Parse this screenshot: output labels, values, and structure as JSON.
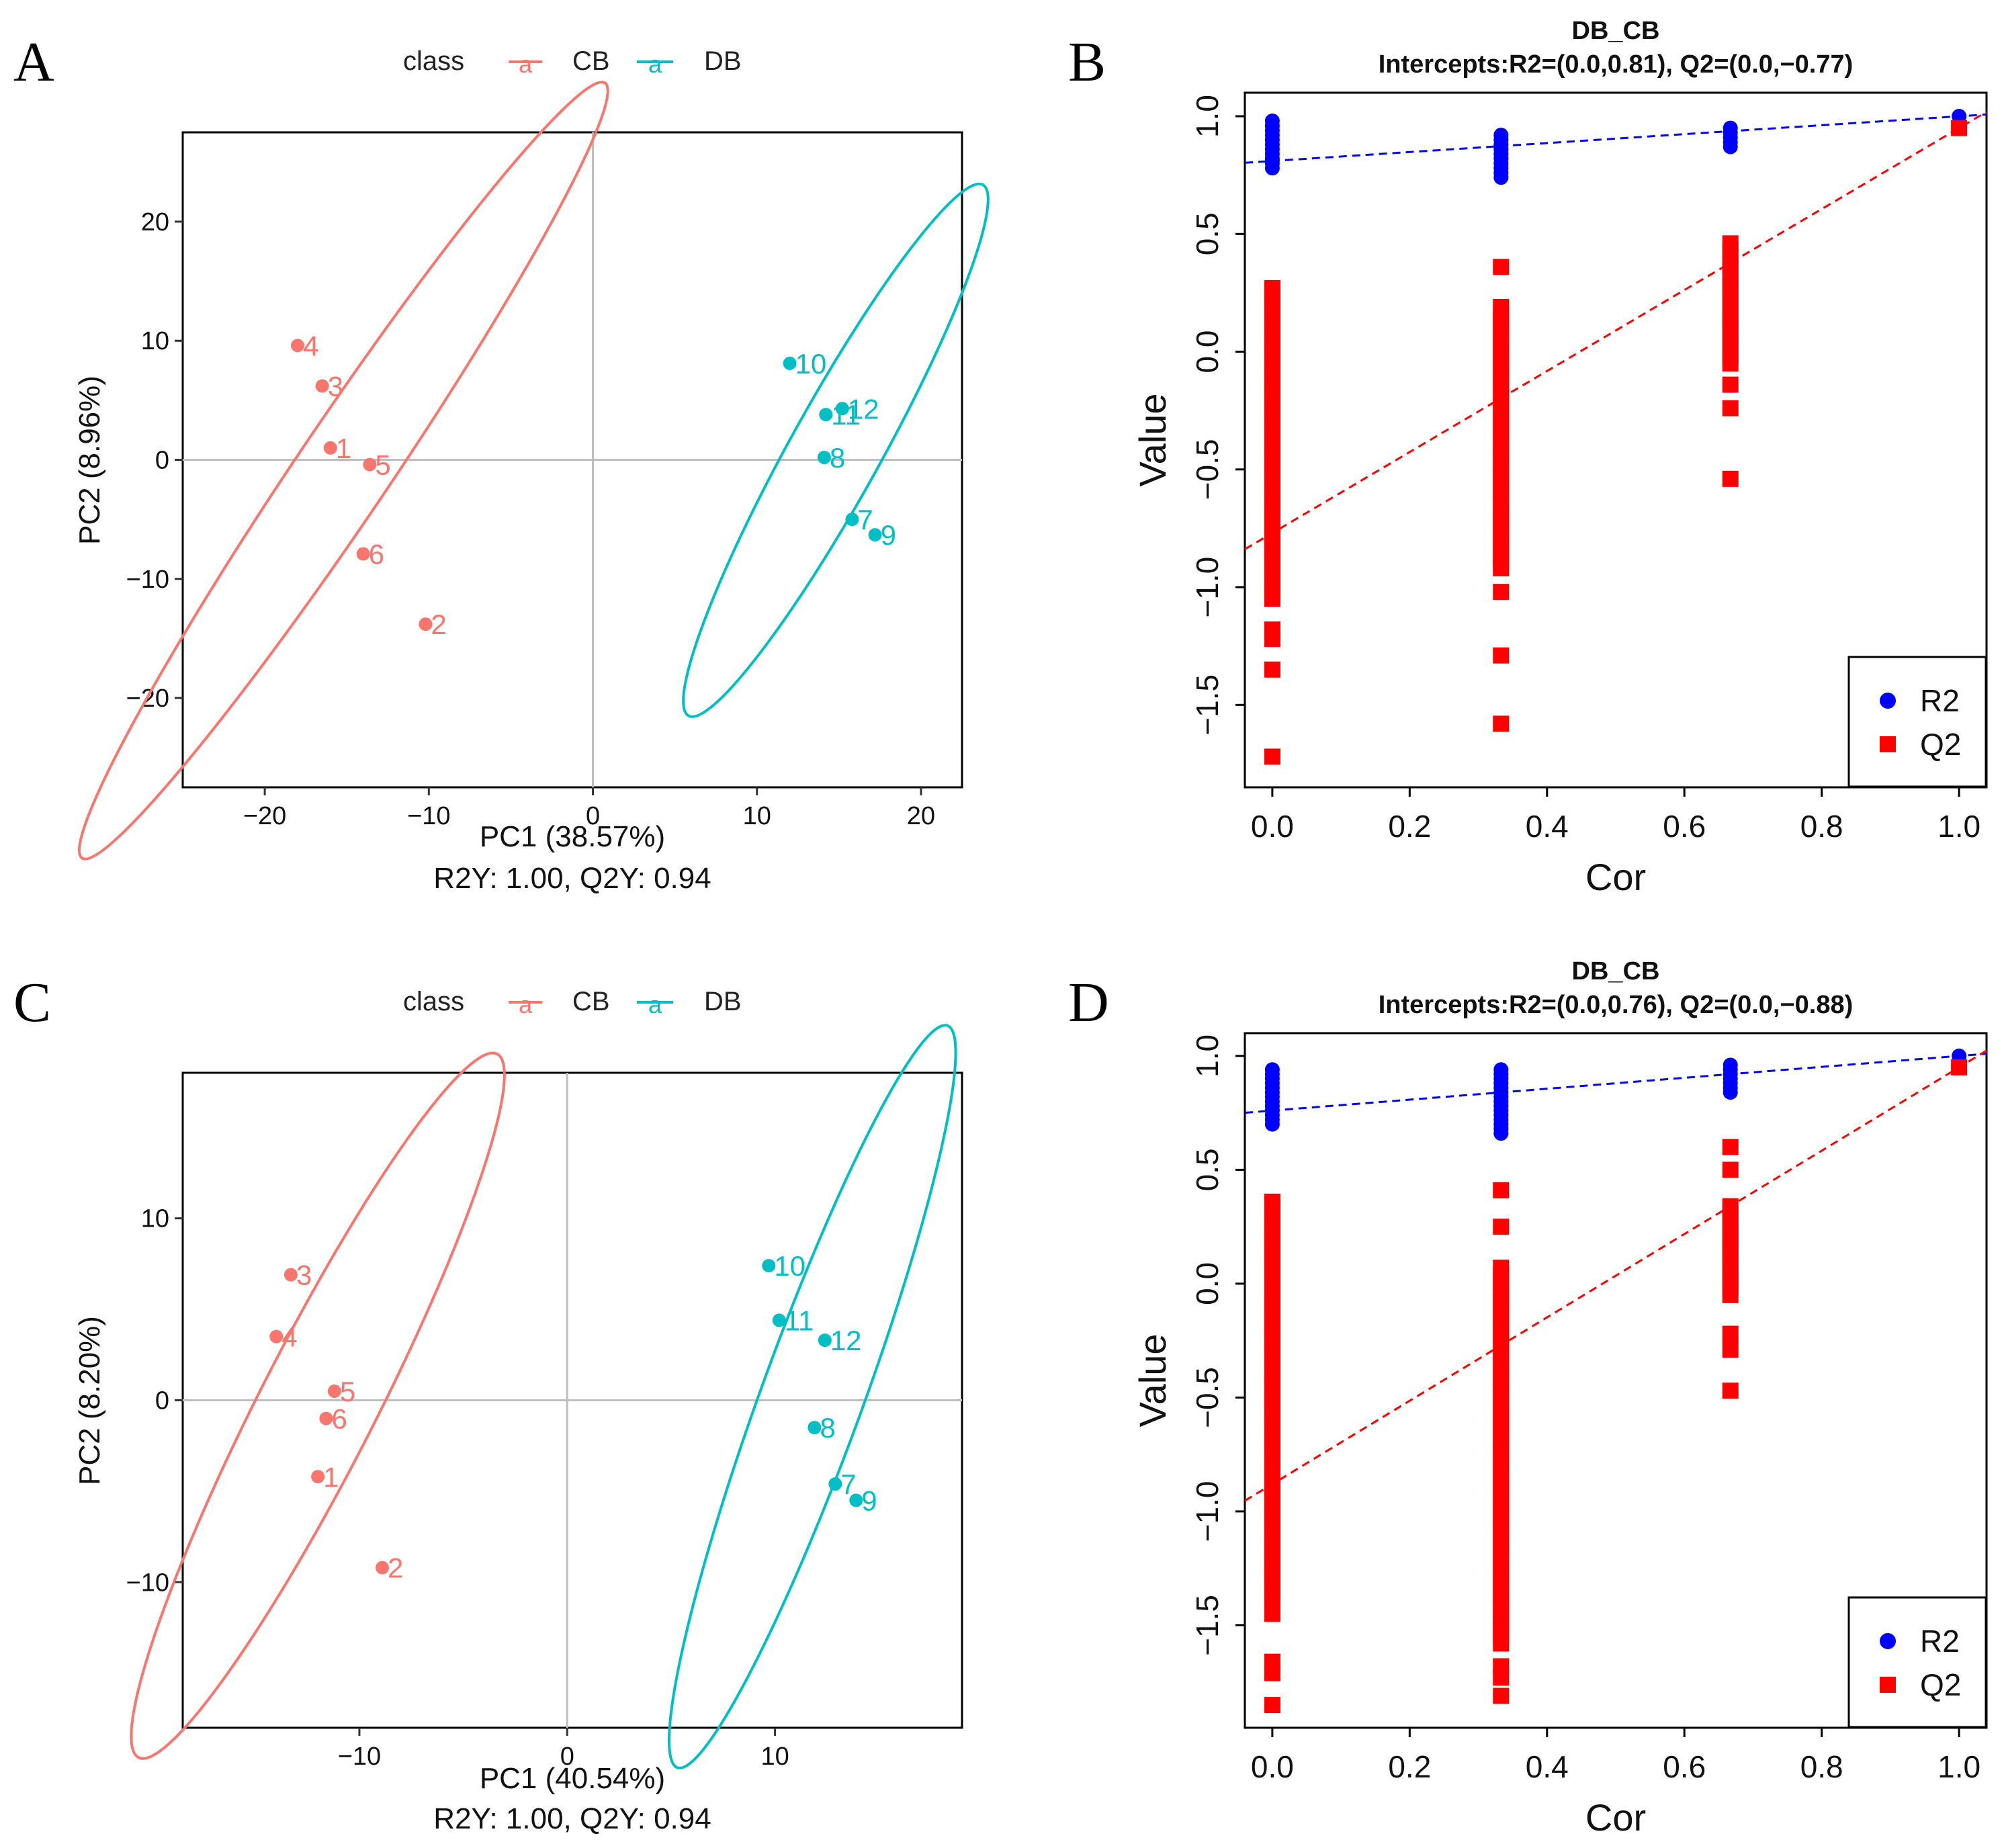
{
  "colors": {
    "CB": "#F8766D",
    "DB": "#00BFC4",
    "R2": "#0000FF",
    "Q2": "#FF0000",
    "refline": "#BEBEBE"
  },
  "chart_data": [
    {
      "panel": "A",
      "type": "scatter",
      "legend_title": "class",
      "legend": [
        "CB",
        "DB"
      ],
      "legend_position": "top",
      "legend_glyph": "a",
      "xlabel": "PC1 (38.57%)",
      "subtitle": "R2Y: 1.00, Q2Y: 0.94",
      "ylabel": "PC2 (8.96%)",
      "xlim": [
        -25,
        22.5
      ],
      "ylim": [
        -27.5,
        27.5
      ],
      "xticks": [
        -20,
        -10,
        0,
        10,
        20
      ],
      "yticks": [
        -20,
        -10,
        0,
        10,
        20
      ],
      "xtick_labels": [
        "−20",
        "−10",
        "0",
        "10",
        "20"
      ],
      "ytick_labels": [
        "−20",
        "−10",
        "0",
        "10",
        "20"
      ],
      "series": [
        {
          "name": "CB",
          "points": [
            {
              "label": "1",
              "x": -16.0,
              "y": 1.0
            },
            {
              "label": "2",
              "x": -10.2,
              "y": -13.8
            },
            {
              "label": "3",
              "x": -16.5,
              "y": 6.2
            },
            {
              "label": "4",
              "x": -18.0,
              "y": 9.6
            },
            {
              "label": "5",
              "x": -13.6,
              "y": -0.4
            },
            {
              "label": "6",
              "x": -14.0,
              "y": -7.9
            }
          ],
          "ellipse": {
            "cx": -15.2,
            "cy": -0.9,
            "rx": 28.5,
            "ry": 3.9,
            "angle_deg": -56
          }
        },
        {
          "name": "DB",
          "points": [
            {
              "label": "7",
              "x": 15.8,
              "y": -5.0
            },
            {
              "label": "8",
              "x": 14.1,
              "y": 0.2
            },
            {
              "label": "9",
              "x": 17.2,
              "y": -6.3
            },
            {
              "label": "10",
              "x": 12.0,
              "y": 8.1
            },
            {
              "label": "11",
              "x": 14.2,
              "y": 3.8
            },
            {
              "label": "12",
              "x": 15.2,
              "y": 4.3
            }
          ],
          "ellipse": {
            "cx": 14.8,
            "cy": 0.8,
            "rx": 18.5,
            "ry": 3.8,
            "angle_deg": -61
          }
        }
      ]
    },
    {
      "panel": "B",
      "type": "scatter",
      "title": "DB_CB",
      "subtitle": "Intercepts:R2=(0.0,0.81), Q2=(0.0,−0.77)",
      "xlabel": "Cor",
      "ylabel": "Value",
      "xlim": [
        -0.04,
        1.04
      ],
      "ylim": [
        -1.85,
        1.1
      ],
      "xticks": [
        0.0,
        0.2,
        0.4,
        0.6,
        0.8,
        1.0
      ],
      "yticks": [
        -1.5,
        -1.0,
        -0.5,
        0.0,
        0.5,
        1.0
      ],
      "xtick_labels": [
        "0.0",
        "0.2",
        "0.4",
        "0.6",
        "0.8",
        "1.0"
      ],
      "ytick_labels": [
        "−1.5",
        "−1.0",
        "−0.5",
        "0.0",
        "0.5",
        "1.0"
      ],
      "legend": [
        "R2",
        "Q2"
      ],
      "legend_position": "bottom-right",
      "R2_intercept": 0.81,
      "Q2_intercept": -0.77,
      "R2_original": 1.0,
      "Q2_original": 0.95,
      "series": [
        {
          "name": "R2",
          "groups": [
            {
              "x": 0.0,
              "min": 0.78,
              "max": 0.99
            },
            {
              "x": 0.333,
              "min": 0.74,
              "max": 0.92
            },
            {
              "x": 0.667,
              "min": 0.87,
              "max": 0.95
            }
          ]
        },
        {
          "name": "Q2",
          "groups": [
            {
              "x": 0.0,
              "min": -1.05,
              "max": 0.27,
              "extra": [
                -1.18,
                -1.22,
                -1.35,
                -1.72
              ]
            },
            {
              "x": 0.333,
              "min": -0.92,
              "max": 0.21,
              "extra": [
                0.36,
                -1.02,
                -1.29,
                -1.58
              ]
            },
            {
              "x": 0.667,
              "min": -0.05,
              "max": 0.47,
              "extra": [
                -0.14,
                -0.24,
                -0.54
              ]
            }
          ]
        }
      ]
    },
    {
      "panel": "C",
      "type": "scatter",
      "legend_title": "class",
      "legend": [
        "CB",
        "DB"
      ],
      "legend_position": "top",
      "legend_glyph": "a",
      "xlabel": "PC1 (40.54%)",
      "subtitle": "R2Y: 1.00, Q2Y: 0.94",
      "ylabel": "PC2 (8.20%)",
      "xlim": [
        -18.5,
        19.0
      ],
      "ylim": [
        -18.0,
        18.0
      ],
      "xticks": [
        -10,
        0,
        10
      ],
      "yticks": [
        -10,
        0,
        10
      ],
      "xtick_labels": [
        "−10",
        "0",
        "10"
      ],
      "ytick_labels": [
        "−10",
        "0",
        "10"
      ],
      "series": [
        {
          "name": "CB",
          "points": [
            {
              "label": "1",
              "x": -12.0,
              "y": -4.2
            },
            {
              "label": "2",
              "x": -8.9,
              "y": -9.2
            },
            {
              "label": "3",
              "x": -13.3,
              "y": 6.9
            },
            {
              "label": "4",
              "x": -14.0,
              "y": 3.5
            },
            {
              "label": "5",
              "x": -11.2,
              "y": 0.5
            },
            {
              "label": "6",
              "x": -11.6,
              "y": -1.0
            }
          ],
          "ellipse": {
            "cx": -12.0,
            "cy": -0.3,
            "rx": 19.0,
            "ry": 3.2,
            "angle_deg": -63
          }
        },
        {
          "name": "DB",
          "points": [
            {
              "label": "7",
              "x": 12.9,
              "y": -4.6
            },
            {
              "label": "8",
              "x": 11.9,
              "y": -1.5
            },
            {
              "label": "9",
              "x": 13.9,
              "y": -5.5
            },
            {
              "label": "10",
              "x": 9.7,
              "y": 7.4
            },
            {
              "label": "11",
              "x": 10.2,
              "y": 4.4
            },
            {
              "label": "12",
              "x": 12.4,
              "y": 3.3
            }
          ],
          "ellipse": {
            "cx": 11.8,
            "cy": 0.2,
            "rx": 19.0,
            "ry": 2.8,
            "angle_deg": -70
          }
        }
      ]
    },
    {
      "panel": "D",
      "type": "scatter",
      "title": "DB_CB",
      "subtitle": "Intercepts:R2=(0.0,0.76), Q2=(0.0,−0.88)",
      "xlabel": "Cor",
      "ylabel": "Value",
      "xlim": [
        -0.04,
        1.04
      ],
      "ylim": [
        -1.95,
        1.1
      ],
      "xticks": [
        0.0,
        0.2,
        0.4,
        0.6,
        0.8,
        1.0
      ],
      "yticks": [
        -1.5,
        -1.0,
        -0.5,
        0.0,
        0.5,
        1.0
      ],
      "xtick_labels": [
        "0.0",
        "0.2",
        "0.4",
        "0.6",
        "0.8",
        "1.0"
      ],
      "ytick_labels": [
        "−1.5",
        "−1.0",
        "−0.5",
        "0.0",
        "0.5",
        "1.0"
      ],
      "legend": [
        "R2",
        "Q2"
      ],
      "legend_position": "bottom-right",
      "R2_intercept": 0.76,
      "Q2_intercept": -0.88,
      "R2_original": 1.0,
      "Q2_original": 0.95,
      "series": [
        {
          "name": "R2",
          "groups": [
            {
              "x": 0.0,
              "min": 0.7,
              "max": 0.94
            },
            {
              "x": 0.333,
              "min": 0.66,
              "max": 0.95
            },
            {
              "x": 0.667,
              "min": 0.84,
              "max": 0.96
            }
          ]
        },
        {
          "name": "Q2",
          "groups": [
            {
              "x": 0.0,
              "min": -1.38,
              "max": 0.37,
              "extra": [
                -1.45,
                -1.66,
                -1.71,
                -1.85
              ]
            },
            {
              "x": 0.333,
              "min": -1.58,
              "max": 0.07,
              "extra": [
                0.41,
                0.25,
                -1.68,
                -1.73,
                -1.81
              ]
            },
            {
              "x": 0.667,
              "min": -0.05,
              "max": 0.35,
              "extra": [
                0.6,
                0.5,
                -0.22,
                -0.29,
                -0.47
              ]
            }
          ]
        }
      ]
    }
  ]
}
